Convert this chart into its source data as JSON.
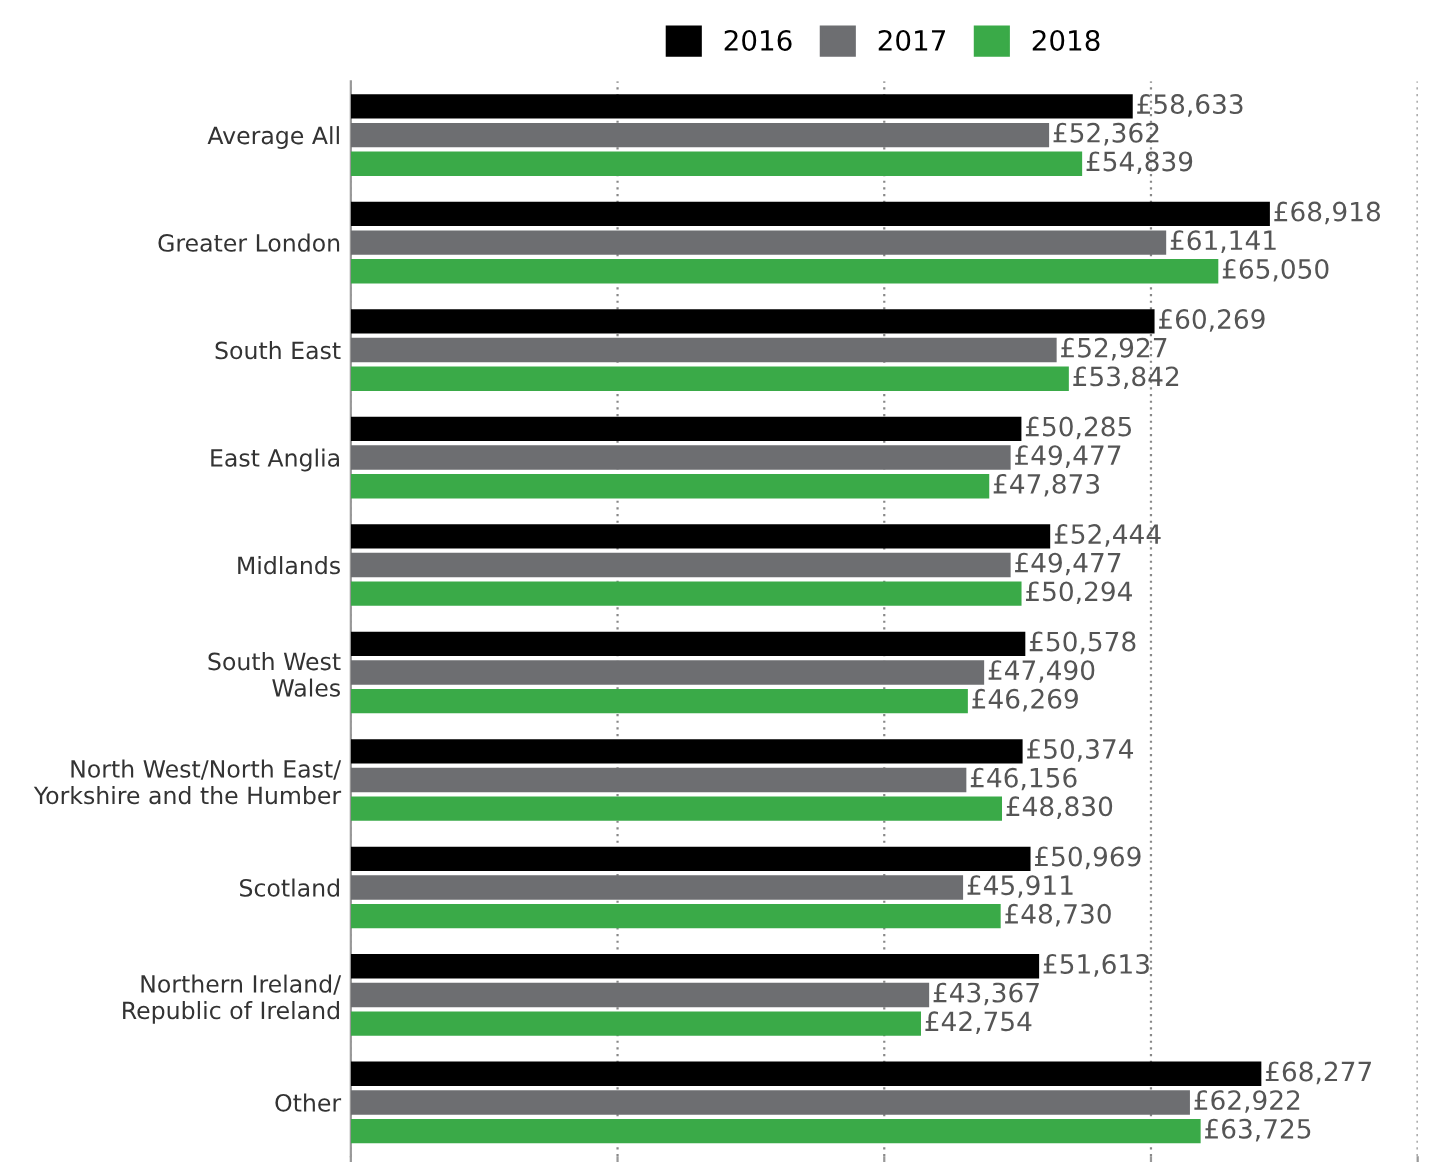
{
  "chart_data": {
    "type": "bar",
    "orientation": "horizontal",
    "categories": [
      "Average All",
      "Greater London",
      "South East",
      "East Anglia",
      "Midlands",
      "South West\nWales",
      "North West/North East/\nYorkshire and the Humber",
      "Scotland",
      "Northern Ireland/\nRepublic of Ireland",
      "Other"
    ],
    "series": [
      {
        "name": "2016",
        "color": "#000000",
        "values": [
          58633,
          68918,
          60269,
          50285,
          52444,
          50578,
          50374,
          50969,
          51613,
          68277
        ],
        "value_labels": [
          "£58,633",
          "£68,918",
          "£60,269",
          "£50,285",
          "£52,444",
          "£50,578",
          "£50,374",
          "£50,969",
          "£51,613",
          "£68,277"
        ]
      },
      {
        "name": "2017",
        "color": "#6d6e71",
        "values": [
          52362,
          61141,
          52927,
          49477,
          49477,
          47490,
          46156,
          45911,
          43367,
          62922
        ],
        "value_labels": [
          "£52,362",
          "£61,141",
          "£52,927",
          "£49,477",
          "£49,477",
          "£47,490",
          "£46,156",
          "£45,911",
          "£43,367",
          "£62,922"
        ]
      },
      {
        "name": "2018",
        "color": "#3aaa48",
        "values": [
          54839,
          65050,
          53842,
          47873,
          50294,
          46269,
          48830,
          48730,
          42754,
          63725
        ],
        "value_labels": [
          "£54,839",
          "£65,050",
          "£53,842",
          "£47,873",
          "£50,294",
          "£46,269",
          "£48,830",
          "£48,730",
          "£42,754",
          "£63,725"
        ]
      }
    ],
    "xlim": [
      0,
      80000
    ],
    "xticks": [
      {
        "value": 0,
        "label": null
      },
      {
        "value": 20000,
        "label": null
      },
      {
        "value": 40000,
        "label": null
      },
      {
        "value": 60000,
        "label": null
      },
      {
        "value": 80000,
        "label": null
      }
    ],
    "tick_labels": "y",
    "grid": "x",
    "legend": "top"
  }
}
